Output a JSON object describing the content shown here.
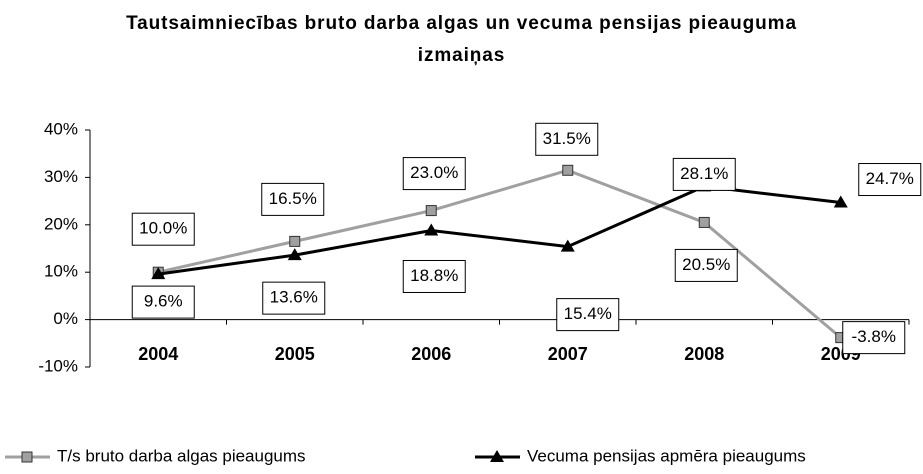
{
  "chart_data": {
    "type": "line",
    "title": "Tautsaimniecības bruto darba algas un vecuma pensijas pieauguma izmaiņas",
    "categories": [
      "2004",
      "2005",
      "2006",
      "2007",
      "2008",
      "2009"
    ],
    "series": [
      {
        "name": "T/s bruto darba algas pieaugums",
        "color": "#a0a0a0",
        "marker": "square",
        "values": [
          10.0,
          16.5,
          23.0,
          31.5,
          20.5,
          -3.8
        ],
        "value_labels": [
          "10.0%",
          "16.5%",
          "23.0%",
          "31.5%",
          "20.5%",
          "-3.8%"
        ]
      },
      {
        "name": "Vecuma pensijas apmēra pieaugums",
        "color": "#000000",
        "marker": "triangle",
        "values": [
          9.6,
          13.6,
          18.8,
          15.4,
          28.1,
          24.7
        ],
        "value_labels": [
          "9.6%",
          "13.6%",
          "18.8%",
          "15.4%",
          "28.1%",
          "24.7%"
        ]
      }
    ],
    "ylim": [
      -10,
      40
    ],
    "yticks": [
      {
        "value": -10,
        "label": "-10%"
      },
      {
        "value": 0,
        "label": "0%"
      },
      {
        "value": 10,
        "label": "10%"
      },
      {
        "value": 20,
        "label": "20%"
      },
      {
        "value": 30,
        "label": "30%"
      },
      {
        "value": 40,
        "label": "40%"
      }
    ],
    "legend": "bottom"
  }
}
